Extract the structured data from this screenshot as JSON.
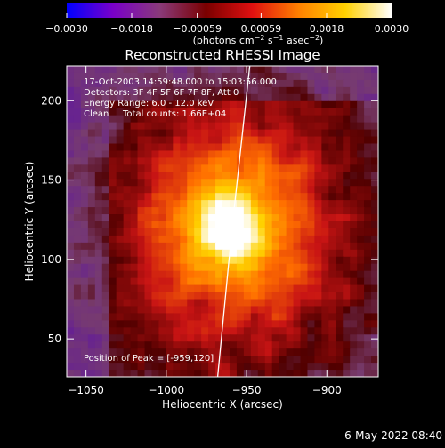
{
  "chart_data": {
    "type": "heatmap",
    "title": "Reconstructed RHESSI Image",
    "xlabel": "Heliocentric X (arcsec)",
    "ylabel": "Heliocentric Y (arcsec)",
    "xlim": [
      -1062,
      -868
    ],
    "ylim": [
      26,
      222
    ],
    "x_ticks": [
      -1050,
      -1000,
      -950,
      -900
    ],
    "y_ticks": [
      50,
      100,
      150,
      200
    ],
    "x_tick_labels": [
      "−1050",
      "−1000",
      "−950",
      "−900"
    ],
    "y_tick_labels": [
      "50",
      "100",
      "150",
      "200"
    ],
    "grid": false,
    "colorbar": {
      "range": [
        -0.003,
        0.003
      ],
      "ticks": [
        -0.003,
        -0.0018,
        -0.00059,
        0.00059,
        0.0018,
        0.003
      ],
      "tick_labels": [
        "−0.0030",
        "−0.0018",
        "−0.00059",
        "0.00059",
        "0.0018",
        "0.0030"
      ],
      "unit_text": "(photons cm",
      "unit_sup1": "−2",
      "unit_mid": " s",
      "unit_sup2": "−1",
      "unit_mid2": " asec",
      "unit_sup3": "−2",
      "unit_end": ")",
      "colors": [
        "#0000ff",
        "#7a00c8",
        "#8a3a7a",
        "#7a0000",
        "#e01010",
        "#ff8000",
        "#ffd000",
        "#ffffff"
      ]
    },
    "annotations": [
      "17-Oct-2003 14:59:48.000 to 15:03:56.000",
      "Detectors: 3F 4F 5F 6F 7F 8F, Att 0",
      "Energy Range: 6.0 - 12.0 keV",
      "Clean",
      "Total counts: 1.66E+04"
    ],
    "peak_label": "Position of Peak = [-959,120]",
    "peak": [
      -959,
      120
    ],
    "limb": [
      [
        -968,
        26
      ],
      [
        -959,
        120
      ],
      [
        -948,
        222
      ]
    ]
  },
  "footer": {
    "timestamp": "6-May-2022 08:40"
  }
}
